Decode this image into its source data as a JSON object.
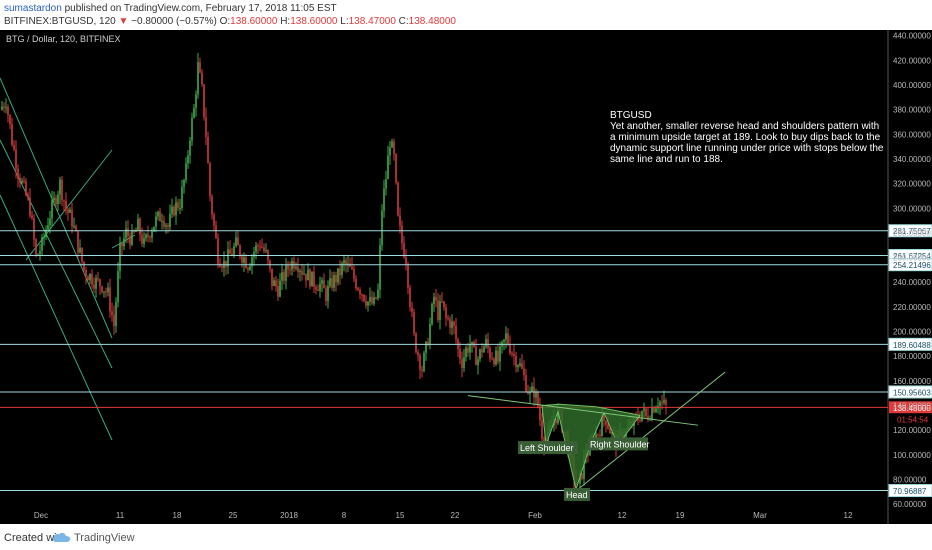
{
  "header": {
    "author": "sumastardon",
    "published": "published on TradingView.com, February 17, 2018 11:05 EST",
    "symbol": "BITFINEX:BTGUSD, 120",
    "change_arrow": "▼",
    "change": "−0.80000 (−0.57%)",
    "o_label": "O:",
    "o_value": "138.60000",
    "h_label": "H:",
    "h_value": "138.60000",
    "l_label": "L:",
    "l_value": "138.47000",
    "c_label": "C:",
    "c_value": "138.48000"
  },
  "footer": {
    "created_with": "Created with",
    "brand": "TradingView",
    "logo_icon": "tradingview-cloud-icon"
  },
  "colors": {
    "background": "#000000",
    "axis_bg": "#000000",
    "up_candle": "#3fae49",
    "down_candle": "#d13b3b",
    "level_line": "#9fdce0",
    "price_line": "#e03a3a",
    "pattern_fill": "#2f6b2a",
    "channel": "#3aa87c"
  },
  "chart_data": {
    "type": "candlestick",
    "title": "BTG / Dollar, 120, BITFINEX",
    "annotation": {
      "title": "BTGUSD",
      "text_lines": [
        "Yet another, smaller reverse head and shoulders pattern with",
        "a minimum upside target at 189. Look to buy dips back to the",
        "dynamic support line running under price with stops below the",
        "same line and run to 188."
      ]
    },
    "y_axis": {
      "ylim": [
        56,
        443
      ],
      "ticks": [
        "440.00000",
        "420.00000",
        "400.00000",
        "380.00000",
        "360.00000",
        "340.00000",
        "320.00000",
        "300.00000",
        "280.00000",
        "260.00000",
        "240.00000",
        "220.00000",
        "200.00000",
        "180.00000",
        "160.00000",
        "140.00000",
        "120.00000",
        "100.00000",
        "80.00000",
        "60.00000"
      ],
      "tick_values": [
        440,
        420,
        400,
        380,
        360,
        340,
        320,
        300,
        280,
        260,
        240,
        220,
        200,
        180,
        160,
        140,
        120,
        100,
        80,
        60
      ]
    },
    "x_axis": {
      "labels": [
        "Dec",
        "11",
        "18",
        "25",
        "2018",
        "8",
        "15",
        "22",
        "Feb",
        "12",
        "19",
        "Mar",
        "12"
      ]
    },
    "horizontal_levels": [
      {
        "value": 281.75067,
        "label": "281.75067"
      },
      {
        "value": 261.67254,
        "label": "261.67254"
      },
      {
        "value": 254.21496,
        "label": "254.21496"
      },
      {
        "value": 189.60488,
        "label": "189.60488"
      },
      {
        "value": 150.95603,
        "label": "150.95603"
      },
      {
        "value": 70.96887,
        "label": "70.96887"
      }
    ],
    "last_price": {
      "value": 138.48,
      "label": "138.48000",
      "countdown": "01:54:54"
    },
    "pattern_labels": [
      "Left Shoulder",
      "Head",
      "Right Shoulder"
    ],
    "price_path": [
      [
        0,
        380
      ],
      [
        6,
        388
      ],
      [
        12,
        355
      ],
      [
        18,
        330
      ],
      [
        24,
        315
      ],
      [
        30,
        300
      ],
      [
        36,
        260
      ],
      [
        42,
        270
      ],
      [
        48,
        290
      ],
      [
        54,
        305
      ],
      [
        60,
        320
      ],
      [
        66,
        300
      ],
      [
        72,
        290
      ],
      [
        78,
        270
      ],
      [
        84,
        250
      ],
      [
        90,
        245
      ],
      [
        96,
        240
      ],
      [
        102,
        238
      ],
      [
        108,
        230
      ],
      [
        114,
        205
      ],
      [
        120,
        265
      ],
      [
        126,
        280
      ],
      [
        132,
        275
      ],
      [
        138,
        285
      ],
      [
        144,
        270
      ],
      [
        150,
        282
      ],
      [
        156,
        290
      ],
      [
        162,
        295
      ],
      [
        168,
        285
      ],
      [
        174,
        300
      ],
      [
        180,
        305
      ],
      [
        186,
        330
      ],
      [
        190,
        360
      ],
      [
        194,
        380
      ],
      [
        198,
        415
      ],
      [
        202,
        395
      ],
      [
        206,
        360
      ],
      [
        210,
        310
      ],
      [
        214,
        285
      ],
      [
        218,
        262
      ],
      [
        224,
        255
      ],
      [
        230,
        262
      ],
      [
        236,
        270
      ],
      [
        242,
        262
      ],
      [
        248,
        255
      ],
      [
        254,
        265
      ],
      [
        260,
        272
      ],
      [
        266,
        262
      ],
      [
        272,
        240
      ],
      [
        278,
        235
      ],
      [
        284,
        245
      ],
      [
        290,
        255
      ],
      [
        296,
        258
      ],
      [
        302,
        250
      ],
      [
        308,
        245
      ],
      [
        314,
        240
      ],
      [
        320,
        238
      ],
      [
        326,
        230
      ],
      [
        332,
        240
      ],
      [
        338,
        245
      ],
      [
        344,
        255
      ],
      [
        350,
        250
      ],
      [
        356,
        240
      ],
      [
        362,
        232
      ],
      [
        368,
        224
      ],
      [
        374,
        222
      ],
      [
        378,
        232
      ],
      [
        382,
        300
      ],
      [
        386,
        325
      ],
      [
        390,
        355
      ],
      [
        394,
        340
      ],
      [
        398,
        290
      ],
      [
        402,
        272
      ],
      [
        406,
        260
      ],
      [
        410,
        225
      ],
      [
        414,
        195
      ],
      [
        418,
        182
      ],
      [
        422,
        170
      ],
      [
        426,
        185
      ],
      [
        430,
        205
      ],
      [
        434,
        228
      ],
      [
        438,
        215
      ],
      [
        442,
        222
      ],
      [
        446,
        210
      ],
      [
        450,
        208
      ],
      [
        454,
        202
      ],
      [
        458,
        185
      ],
      [
        462,
        176
      ],
      [
        466,
        185
      ],
      [
        470,
        190
      ],
      [
        474,
        181
      ],
      [
        478,
        178
      ],
      [
        482,
        186
      ],
      [
        486,
        190
      ],
      [
        490,
        182
      ],
      [
        494,
        180
      ],
      [
        498,
        176
      ],
      [
        502,
        186
      ],
      [
        506,
        196
      ],
      [
        510,
        188
      ],
      [
        514,
        180
      ],
      [
        518,
        176
      ],
      [
        522,
        168
      ],
      [
        526,
        158
      ],
      [
        530,
        148
      ],
      [
        534,
        152
      ],
      [
        538,
        140
      ],
      [
        542,
        118
      ],
      [
        546,
        108
      ],
      [
        550,
        118
      ],
      [
        554,
        130
      ],
      [
        558,
        133
      ],
      [
        562,
        125
      ],
      [
        566,
        112
      ],
      [
        570,
        100
      ],
      [
        574,
        84
      ],
      [
        578,
        72
      ],
      [
        582,
        86
      ],
      [
        586,
        104
      ],
      [
        590,
        102
      ],
      [
        594,
        114
      ],
      [
        598,
        118
      ],
      [
        602,
        126
      ],
      [
        606,
        130
      ],
      [
        610,
        120
      ],
      [
        614,
        112
      ],
      [
        618,
        110
      ],
      [
        622,
        118
      ],
      [
        626,
        118
      ],
      [
        630,
        124
      ],
      [
        634,
        126
      ],
      [
        638,
        130
      ],
      [
        642,
        136
      ],
      [
        646,
        130
      ],
      [
        650,
        136
      ],
      [
        654,
        140
      ],
      [
        658,
        144
      ],
      [
        662,
        141
      ],
      [
        666,
        138.5
      ]
    ]
  }
}
